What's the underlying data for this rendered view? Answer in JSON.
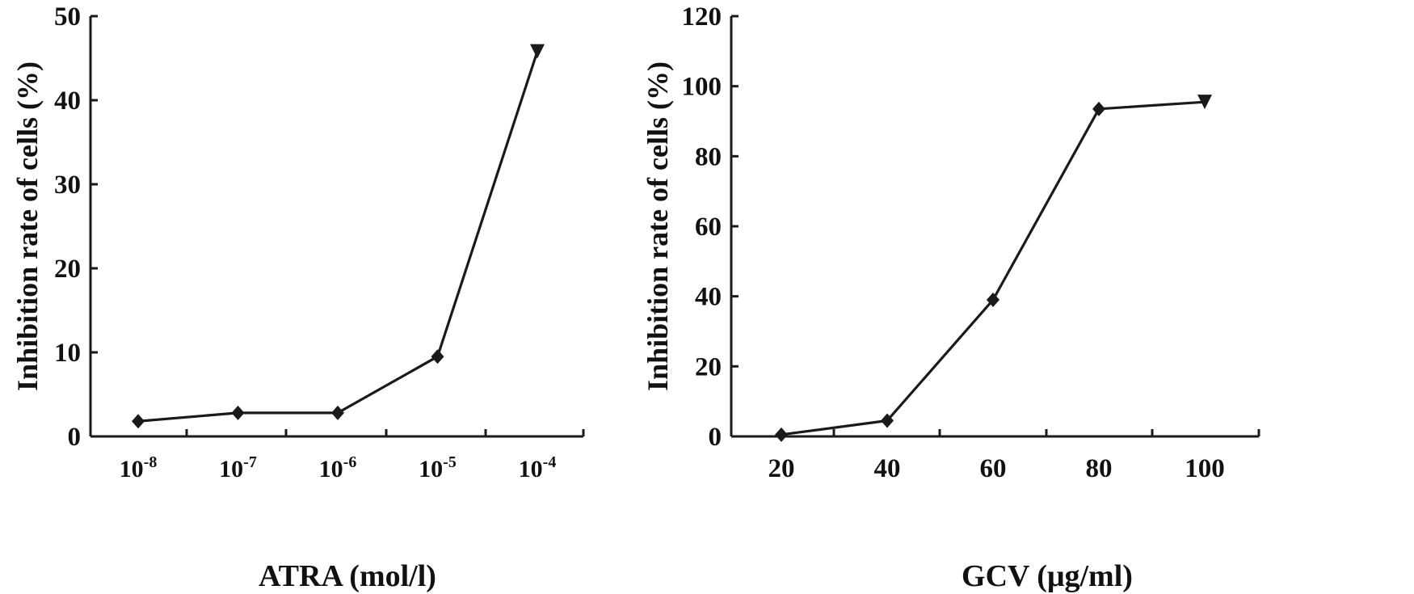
{
  "chart_data": [
    {
      "type": "line",
      "title": "",
      "xlabel": "ATRA (mol/l)",
      "ylabel": "Inhibition rate of cells (%)",
      "x_scale": "log",
      "categories": [
        "10-8",
        "10-7",
        "10-6",
        "10-5",
        "10-4"
      ],
      "x_ticks": [
        {
          "base": "10",
          "exp": "-8"
        },
        {
          "base": "10",
          "exp": "-7"
        },
        {
          "base": "10",
          "exp": "-6"
        },
        {
          "base": "10",
          "exp": "-5"
        },
        {
          "base": "10",
          "exp": "-4"
        }
      ],
      "x": [
        1e-08,
        1e-07,
        1e-06,
        1e-05,
        0.0001
      ],
      "values": [
        1.8,
        2.8,
        2.8,
        9.5,
        45.8
      ],
      "ylim": [
        0,
        50
      ],
      "yticks": [
        0,
        10,
        20,
        30,
        40,
        50
      ],
      "markers": [
        "diamond",
        "diamond",
        "diamond",
        "diamond",
        "triangle-down"
      ],
      "grid": false,
      "color": "#1a1a1a"
    },
    {
      "type": "line",
      "title": "",
      "xlabel": "GCV (μg/ml)",
      "ylabel": "Inhibition rate of cells (%)",
      "x": [
        20,
        40,
        60,
        80,
        100
      ],
      "x_tick_labels": [
        "20",
        "40",
        "60",
        "80",
        "100"
      ],
      "values": [
        0.5,
        4.5,
        39,
        93.5,
        95.5
      ],
      "ylim": [
        0,
        120
      ],
      "yticks": [
        0,
        20,
        40,
        60,
        80,
        100,
        120
      ],
      "markers": [
        "diamond",
        "diamond",
        "diamond",
        "diamond",
        "triangle-down"
      ],
      "grid": false,
      "color": "#1a1a1a"
    }
  ]
}
